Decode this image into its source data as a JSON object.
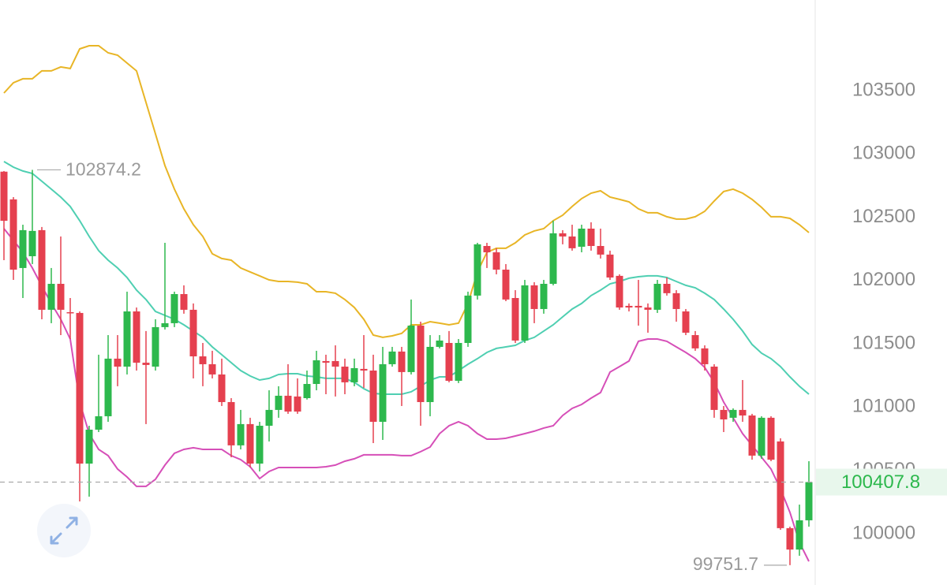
{
  "chart_data": {
    "type": "candlestick",
    "up_color": "#2db84d",
    "down_color": "#e5404f",
    "ylim": [
      99595,
      104216
    ],
    "yticks": [
      100000,
      100500,
      101000,
      101500,
      102000,
      102500,
      103000,
      103500
    ],
    "grid": false,
    "open": [
      102860,
      102641,
      102099,
      102192,
      102398,
      101769,
      101974,
      101750,
      101744,
      100554,
      100822,
      100928,
      101383,
      101320,
      101756,
      101351,
      101320,
      101632,
      101663,
      101893,
      101769,
      101401,
      101339,
      101258,
      101040,
      100698,
      100866,
      100554,
      100853,
      100978,
      101090,
      101084,
      101071,
      101183,
      101364,
      101364,
      101320,
      101196,
      101302,
      101289,
      100884,
      101339,
      101439,
      101277,
      101644,
      101040,
      101476,
      101507,
      101208,
      101507,
      101881,
      102273,
      102223,
      102086,
      101862,
      101526,
      101962,
      101775,
      101974,
      102373,
      102348,
      102267,
      102410,
      102273,
      102205,
      102037,
      101800,
      101800,
      101787,
      101769,
      101974,
      101900,
      101756,
      101569,
      101464,
      101320,
      100978,
      100916,
      100978,
      100934,
      100617,
      100916,
      100729,
      100044,
      99875,
      100106
    ],
    "high": [
      102865,
      102659,
      102441,
      102874.2,
      102423,
      102099,
      102348,
      101862,
      101756,
      100853,
      101414,
      101569,
      101569,
      101912,
      101787,
      101601,
      101694,
      102298,
      101912,
      101962,
      101819,
      101507,
      101445,
      101383,
      101071,
      100978,
      100916,
      100884,
      101133,
      101165,
      101339,
      101227,
      101289,
      101445,
      101414,
      101488,
      101383,
      101383,
      101569,
      101414,
      101476,
      101476,
      101476,
      101850,
      101675,
      101569,
      101569,
      101601,
      101538,
      101912,
      102298,
      102298,
      102255,
      102130,
      101924,
      102005,
      101987,
      102005,
      102473,
      102398,
      102441,
      102441,
      102460,
      102410,
      102236,
      102049,
      101819,
      102005,
      101819,
      102005,
      102024,
      101924,
      101775,
      101601,
      101488,
      101339,
      101009,
      100990,
      101214,
      100947,
      100928,
      100928,
      100754,
      100056,
      100230,
      100573
    ],
    "low": [
      102161,
      102005,
      101862,
      102130,
      101694,
      101663,
      101569,
      101538,
      100255,
      100293,
      100803,
      100884,
      101165,
      101258,
      101289,
      100866,
      101289,
      101613,
      101632,
      101738,
      101227,
      101165,
      101227,
      101009,
      100604,
      100666,
      100523,
      100492,
      100729,
      100916,
      100947,
      100947,
      101060,
      101133,
      101102,
      101084,
      101102,
      101165,
      101152,
      100716,
      100741,
      101320,
      101009,
      101258,
      100853,
      100928,
      101464,
      101196,
      101190,
      101476,
      101850,
      102099,
      102049,
      101837,
      101507,
      101507,
      101663,
      101738,
      101962,
      102286,
      102236,
      102223,
      102236,
      102174,
      102005,
      101769,
      101756,
      101644,
      101588,
      101744,
      101881,
      101675,
      101569,
      101445,
      101289,
      100916,
      100803,
      100884,
      100884,
      100585,
      100592,
      100573,
      100031,
      99751.7,
      99826,
      100056
    ],
    "close": [
      102472,
      102086,
      102398,
      102392,
      101769,
      101974,
      101769,
      101744,
      100554,
      100822,
      100928,
      101383,
      101320,
      101756,
      101351,
      101333,
      101632,
      101663,
      101893,
      101769,
      101401,
      101339,
      101258,
      101040,
      100698,
      100866,
      100554,
      100853,
      100978,
      101090,
      100965,
      100965,
      101183,
      101370,
      101351,
      101320,
      101196,
      101308,
      101289,
      100884,
      101339,
      101439,
      101277,
      101644,
      101040,
      101476,
      101526,
      101208,
      101507,
      101881,
      102286,
      102223,
      102086,
      101850,
      101526,
      101962,
      101775,
      101974,
      102373,
      102348,
      102255,
      102410,
      102273,
      102205,
      102024,
      101787,
      101787,
      101787,
      101769,
      101974,
      101900,
      101775,
      101588,
      101464,
      101339,
      100978,
      100903,
      100978,
      100934,
      100617,
      100916,
      100585,
      100044,
      99875,
      100106,
      100407.8
    ],
    "series": [
      {
        "color": "#e8b526",
        "values": [
          103481,
          103562,
          103594,
          103594,
          103656,
          103656,
          103687,
          103675,
          103830,
          103855,
          103855,
          103799,
          103780,
          103718,
          103656,
          103407,
          103158,
          102908,
          102722,
          102566,
          102441,
          102348,
          102211,
          102174,
          102161,
          102099,
          102068,
          102037,
          102005,
          101993,
          101993,
          101987,
          101974,
          101912,
          101912,
          101900,
          101850,
          101787,
          101694,
          101569,
          101551,
          101563,
          101582,
          101650,
          101650,
          101675,
          101663,
          101650,
          101663,
          101819,
          102068,
          102223,
          102255,
          102255,
          102298,
          102360,
          102392,
          102410,
          102473,
          102516,
          102585,
          102647,
          102690,
          102709,
          102659,
          102641,
          102622,
          102566,
          102535,
          102535,
          102504,
          102485,
          102485,
          102504,
          102547,
          102628,
          102703,
          102722,
          102690,
          102641,
          102578,
          102504,
          102504,
          102491,
          102441,
          102379
        ]
      },
      {
        "color": "#4fcfb2",
        "values": [
          102940,
          102896,
          102865,
          102846,
          102784,
          102722,
          102659,
          102585,
          102473,
          102348,
          102236,
          102161,
          102099,
          102024,
          101924,
          101850,
          101756,
          101725,
          101694,
          101650,
          101601,
          101551,
          101476,
          101414,
          101351,
          101289,
          101246,
          101214,
          101227,
          101258,
          101264,
          101264,
          101246,
          101239,
          101227,
          101227,
          101227,
          101196,
          101146,
          101109,
          101102,
          101102,
          101102,
          101121,
          101165,
          101214,
          101239,
          101239,
          101289,
          101339,
          101383,
          101432,
          101464,
          101476,
          101488,
          101526,
          101551,
          101601,
          101650,
          101713,
          101775,
          101819,
          101881,
          101924,
          101974,
          101993,
          102018,
          102030,
          102037,
          102037,
          102024,
          101993,
          101962,
          101943,
          101900,
          101850,
          101775,
          101694,
          101601,
          101495,
          101426,
          101383,
          101320,
          101239,
          101165,
          101102
        ]
      },
      {
        "color": "#d64fb8",
        "values": [
          102410,
          102317,
          102223,
          102099,
          101956,
          101819,
          101694,
          101538,
          101040,
          100791,
          100666,
          100617,
          100511,
          100448,
          100374,
          100374,
          100430,
          100542,
          100635,
          100666,
          100679,
          100666,
          100666,
          100666,
          100617,
          100585,
          100529,
          100436,
          100492,
          100523,
          100523,
          100523,
          100523,
          100523,
          100529,
          100542,
          100573,
          100592,
          100623,
          100623,
          100623,
          100623,
          100617,
          100617,
          100648,
          100685,
          100791,
          100853,
          100884,
          100853,
          100791,
          100747,
          100747,
          100754,
          100772,
          100791,
          100810,
          100835,
          100853,
          100934,
          100990,
          101021,
          101071,
          101115,
          101277,
          101320,
          101364,
          101520,
          101538,
          101538,
          101520,
          101476,
          101432,
          101383,
          101314,
          101196,
          101040,
          100916,
          100791,
          100698,
          100604,
          100511,
          100355,
          100168,
          99931,
          99782
        ]
      }
    ]
  }
}
